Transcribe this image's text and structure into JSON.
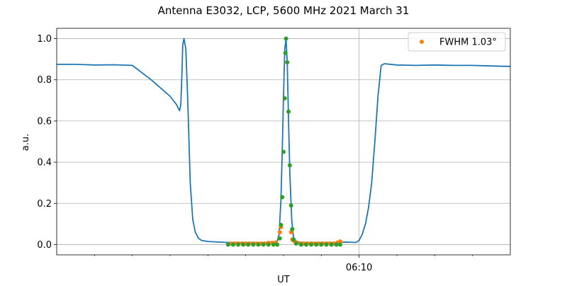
{
  "chart_data": {
    "type": "line",
    "title": "Antenna E3032, LCP, 5600 MHz 2021 March 31",
    "xlabel": "UT",
    "ylabel": "a.u.",
    "xlim": [
      "06:02:00",
      "06:14:00"
    ],
    "ylim": [
      -0.05,
      1.05
    ],
    "yticks": [
      "0.0",
      "0.2",
      "0.4",
      "0.6",
      "0.8",
      "1.0"
    ],
    "xticks_major": [
      "06:10"
    ],
    "xticks_minor": [
      "06:03",
      "06:04",
      "06:05",
      "06:06",
      "06:07",
      "06:08",
      "06:09",
      "06:11",
      "06:12",
      "06:13"
    ],
    "grid": true,
    "legend": {
      "location": "top-right",
      "entries": [
        "FWHM 1.03$^\\circ$"
      ]
    },
    "legend_display": "FWHM 1.03°",
    "series": [
      {
        "role": "line",
        "color": "#1f77b4",
        "x": [
          "06:02:00",
          "06:02:30",
          "06:03:00",
          "06:03:30",
          "06:04:00",
          "06:04:30",
          "06:05:00",
          "06:05:10",
          "06:05:15",
          "06:05:17",
          "06:05:19",
          "06:05:20",
          "06:05:22",
          "06:05:25",
          "06:05:28",
          "06:05:32",
          "06:05:36",
          "06:05:40",
          "06:05:45",
          "06:05:50",
          "06:06:00",
          "06:06:30",
          "06:07:00",
          "06:07:30",
          "06:07:50",
          "06:07:53",
          "06:07:56",
          "06:07:58",
          "06:08:00",
          "06:08:02",
          "06:08:04",
          "06:08:06",
          "06:08:08",
          "06:08:10",
          "06:08:13",
          "06:08:16",
          "06:08:20",
          "06:08:30",
          "06:09:00",
          "06:09:20",
          "06:09:40",
          "06:09:55",
          "06:10:00",
          "06:10:05",
          "06:10:10",
          "06:10:15",
          "06:10:20",
          "06:10:25",
          "06:10:30",
          "06:10:35",
          "06:10:40",
          "06:11:00",
          "06:11:30",
          "06:12:00",
          "06:12:30",
          "06:13:00",
          "06:13:30",
          "06:14:00"
        ],
        "y": [
          0.875,
          0.875,
          0.872,
          0.873,
          0.87,
          0.8,
          0.72,
          0.68,
          0.65,
          0.68,
          0.85,
          0.97,
          1.0,
          0.95,
          0.7,
          0.3,
          0.12,
          0.06,
          0.03,
          0.02,
          0.015,
          0.01,
          0.01,
          0.01,
          0.015,
          0.05,
          0.22,
          0.45,
          0.72,
          0.95,
          1.0,
          0.88,
          0.6,
          0.35,
          0.12,
          0.03,
          0.015,
          0.01,
          0.01,
          0.01,
          0.012,
          0.01,
          0.02,
          0.05,
          0.1,
          0.18,
          0.3,
          0.5,
          0.72,
          0.87,
          0.878,
          0.872,
          0.87,
          0.872,
          0.87,
          0.87,
          0.867,
          0.865
        ]
      },
      {
        "role": "scatter",
        "name": "FWHM 1.03°",
        "color": "#ff7f0e",
        "x": [
          "06:06:36",
          "06:06:42",
          "06:06:48",
          "06:06:54",
          "06:07:00",
          "06:07:06",
          "06:07:12",
          "06:07:18",
          "06:07:24",
          "06:07:30",
          "06:07:36",
          "06:07:42",
          "06:07:48",
          "06:07:54",
          "06:07:56",
          "06:08:12",
          "06:08:14",
          "06:08:16",
          "06:08:18",
          "06:08:20",
          "06:08:26",
          "06:08:32",
          "06:08:38",
          "06:08:44",
          "06:08:50",
          "06:08:56",
          "06:09:02",
          "06:09:08",
          "06:09:14",
          "06:09:20",
          "06:09:26",
          "06:09:30"
        ],
        "y": [
          0.005,
          0.005,
          0.005,
          0.005,
          0.005,
          0.005,
          0.005,
          0.005,
          0.005,
          0.005,
          0.008,
          0.008,
          0.01,
          0.06,
          0.085,
          0.06,
          0.025,
          0.02,
          0.015,
          0.01,
          0.005,
          0.005,
          0.005,
          0.005,
          0.005,
          0.005,
          0.005,
          0.005,
          0.005,
          0.005,
          0.01,
          0.015
        ]
      },
      {
        "role": "scatter",
        "color": "#2ca02c",
        "x": [
          "06:06:32",
          "06:06:40",
          "06:06:48",
          "06:06:56",
          "06:07:04",
          "06:07:12",
          "06:07:20",
          "06:07:28",
          "06:07:36",
          "06:07:44",
          "06:07:50",
          "06:07:54",
          "06:07:56",
          "06:07:58",
          "06:08:00",
          "06:08:02",
          "06:08:03",
          "06:08:04",
          "06:08:06",
          "06:08:08",
          "06:08:10",
          "06:08:12",
          "06:08:14",
          "06:08:16",
          "06:08:20",
          "06:08:28",
          "06:08:36",
          "06:08:44",
          "06:08:52",
          "06:09:00",
          "06:09:08",
          "06:09:16",
          "06:09:24",
          "06:09:30"
        ],
        "y": [
          0.0,
          0.0,
          0.0,
          0.0,
          0.0,
          0.0,
          0.0,
          0.0,
          0.0,
          0.0,
          0.0,
          0.03,
          0.095,
          0.23,
          0.45,
          0.71,
          0.93,
          1.0,
          0.885,
          0.645,
          0.385,
          0.19,
          0.075,
          0.025,
          0.005,
          0.0,
          0.0,
          0.0,
          0.0,
          0.0,
          0.0,
          0.0,
          0.0,
          0.0
        ]
      }
    ],
    "vertical_line_at": "06:10:00"
  }
}
